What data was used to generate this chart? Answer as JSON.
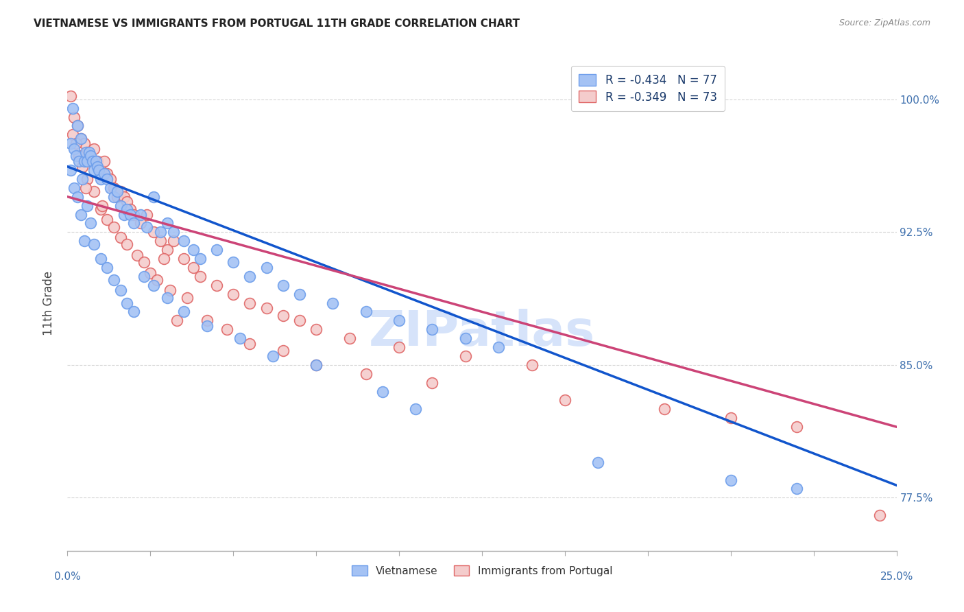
{
  "title": "VIETNAMESE VS IMMIGRANTS FROM PORTUGAL 11TH GRADE CORRELATION CHART",
  "source": "Source: ZipAtlas.com",
  "ylabel": "11th Grade",
  "xlim": [
    0.0,
    25.0
  ],
  "ylim": [
    74.5,
    102.5
  ],
  "y_tick_vals": [
    77.5,
    85.0,
    92.5,
    100.0
  ],
  "legend_blue_label": "Vietnamese",
  "legend_pink_label": "Immigrants from Portugal",
  "r_blue": -0.434,
  "n_blue": 77,
  "r_pink": -0.349,
  "n_pink": 73,
  "blue_color": "#a4c2f4",
  "blue_edge_color": "#6d9eeb",
  "pink_color": "#f4cccc",
  "pink_edge_color": "#e06666",
  "blue_line_color": "#1155cc",
  "pink_line_color": "#cc4477",
  "watermark": "ZIPatlas",
  "watermark_color": "#a4c2f4",
  "blue_line_x0": 0.0,
  "blue_line_y0": 96.2,
  "blue_line_x1": 25.0,
  "blue_line_y1": 78.2,
  "pink_line_x0": 0.0,
  "pink_line_y0": 94.5,
  "pink_line_x1": 25.0,
  "pink_line_y1": 81.5,
  "blue_scatter_x": [
    0.1,
    0.15,
    0.2,
    0.25,
    0.3,
    0.35,
    0.4,
    0.45,
    0.5,
    0.55,
    0.6,
    0.65,
    0.7,
    0.75,
    0.8,
    0.85,
    0.9,
    0.95,
    1.0,
    1.1,
    1.2,
    1.3,
    1.4,
    1.5,
    1.6,
    1.7,
    1.8,
    1.9,
    2.0,
    2.2,
    2.4,
    2.6,
    2.8,
    3.0,
    3.2,
    3.5,
    3.8,
    4.0,
    4.5,
    5.0,
    5.5,
    6.0,
    6.5,
    7.0,
    8.0,
    9.0,
    10.0,
    11.0,
    12.0,
    13.0,
    0.1,
    0.2,
    0.3,
    0.4,
    0.5,
    0.6,
    0.7,
    0.8,
    1.0,
    1.2,
    1.4,
    1.6,
    1.8,
    2.0,
    2.3,
    2.6,
    3.0,
    3.5,
    4.2,
    5.2,
    6.2,
    7.5,
    9.5,
    10.5,
    16.0,
    20.0,
    22.0
  ],
  "blue_scatter_y": [
    97.5,
    99.5,
    97.2,
    96.8,
    98.5,
    96.5,
    97.8,
    95.5,
    96.5,
    97.0,
    96.5,
    97.0,
    96.8,
    96.5,
    96.0,
    96.5,
    96.2,
    96.0,
    95.5,
    95.8,
    95.5,
    95.0,
    94.5,
    94.8,
    94.0,
    93.5,
    93.8,
    93.5,
    93.0,
    93.5,
    92.8,
    94.5,
    92.5,
    93.0,
    92.5,
    92.0,
    91.5,
    91.0,
    91.5,
    90.8,
    90.0,
    90.5,
    89.5,
    89.0,
    88.5,
    88.0,
    87.5,
    87.0,
    86.5,
    86.0,
    96.0,
    95.0,
    94.5,
    93.5,
    92.0,
    94.0,
    93.0,
    91.8,
    91.0,
    90.5,
    89.8,
    89.2,
    88.5,
    88.0,
    90.0,
    89.5,
    88.8,
    88.0,
    87.2,
    86.5,
    85.5,
    85.0,
    83.5,
    82.5,
    79.5,
    78.5,
    78.0
  ],
  "pink_scatter_x": [
    0.1,
    0.2,
    0.3,
    0.4,
    0.5,
    0.6,
    0.7,
    0.8,
    0.9,
    1.0,
    1.1,
    1.2,
    1.3,
    1.4,
    1.5,
    1.6,
    1.7,
    1.8,
    1.9,
    2.0,
    2.2,
    2.4,
    2.6,
    2.8,
    3.0,
    3.2,
    3.5,
    3.8,
    4.0,
    4.5,
    5.0,
    5.5,
    6.0,
    6.5,
    7.0,
    7.5,
    8.5,
    10.0,
    12.0,
    14.0,
    0.15,
    0.25,
    0.35,
    0.45,
    0.6,
    0.8,
    1.0,
    1.2,
    1.4,
    1.6,
    1.8,
    2.1,
    2.3,
    2.5,
    2.7,
    3.1,
    3.6,
    4.2,
    4.8,
    5.5,
    6.5,
    7.5,
    9.0,
    11.0,
    15.0,
    18.0,
    20.0,
    22.0,
    24.5,
    3.3,
    1.05,
    0.55,
    2.9
  ],
  "pink_scatter_y": [
    100.2,
    99.0,
    98.5,
    97.8,
    97.5,
    97.0,
    96.5,
    97.2,
    96.5,
    96.0,
    96.5,
    95.8,
    95.5,
    95.0,
    94.5,
    94.8,
    94.5,
    94.2,
    93.8,
    93.5,
    93.0,
    93.5,
    92.5,
    92.0,
    91.5,
    92.0,
    91.0,
    90.5,
    90.0,
    89.5,
    89.0,
    88.5,
    88.2,
    87.8,
    87.5,
    87.0,
    86.5,
    86.0,
    85.5,
    85.0,
    98.0,
    97.5,
    96.8,
    96.2,
    95.5,
    94.8,
    93.8,
    93.2,
    92.8,
    92.2,
    91.8,
    91.2,
    90.8,
    90.2,
    89.8,
    89.2,
    88.8,
    87.5,
    87.0,
    86.2,
    85.8,
    85.0,
    84.5,
    84.0,
    83.0,
    82.5,
    82.0,
    81.5,
    76.5,
    87.5,
    94.0,
    95.0,
    91.0
  ]
}
